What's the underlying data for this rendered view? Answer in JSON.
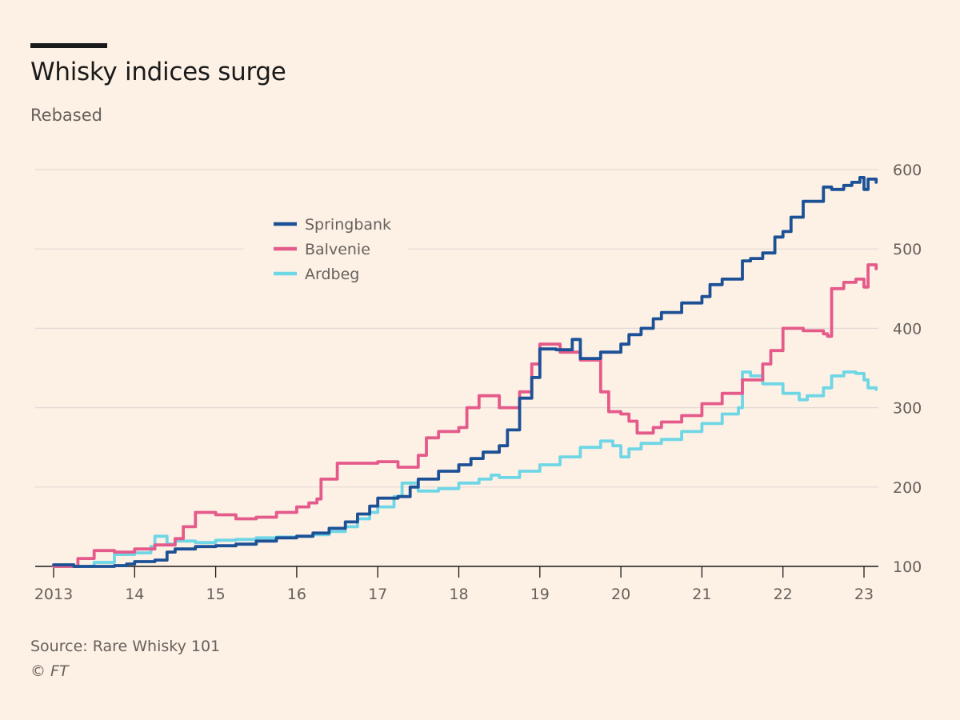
{
  "header": {
    "title": "Whisky indices surge",
    "subtitle": "Rebased"
  },
  "footer": {
    "source": "Source: Rare Whisky 101",
    "copyright_symbol": "©",
    "copyright_owner": "FT"
  },
  "colors": {
    "background": "#fdf1e5",
    "grid": "#e2d9d6",
    "springbank": "#1c5196",
    "balvenie": "#e45a8a",
    "ardbeg": "#6fd6e6"
  },
  "chart_data": {
    "type": "line",
    "title": "Whisky indices surge",
    "subtitle": "Rebased",
    "ylim": [
      100,
      600
    ],
    "xlim": [
      2013.0,
      2023.2
    ],
    "grid": true,
    "legend_position": "top-left",
    "y_ticks": [
      100,
      200,
      300,
      400,
      500,
      600
    ],
    "x_ticks": [
      {
        "value": 2013,
        "label": "2013"
      },
      {
        "value": 2014,
        "label": "14"
      },
      {
        "value": 2015,
        "label": "15"
      },
      {
        "value": 2016,
        "label": "16"
      },
      {
        "value": 2017,
        "label": "17"
      },
      {
        "value": 2018,
        "label": "18"
      },
      {
        "value": 2019,
        "label": "19"
      },
      {
        "value": 2020,
        "label": "20"
      },
      {
        "value": 2021,
        "label": "21"
      },
      {
        "value": 2022,
        "label": "22"
      },
      {
        "value": 2023,
        "label": "23"
      }
    ],
    "series": [
      {
        "name": "Springbank",
        "color": "#1c5196",
        "x": [
          2013.0,
          2013.25,
          2013.5,
          2013.75,
          2013.9,
          2014.0,
          2014.25,
          2014.4,
          2014.5,
          2014.75,
          2015.0,
          2015.25,
          2015.5,
          2015.75,
          2016.0,
          2016.2,
          2016.4,
          2016.6,
          2016.75,
          2016.9,
          2017.0,
          2017.25,
          2017.4,
          2017.5,
          2017.75,
          2018.0,
          2018.15,
          2018.3,
          2018.5,
          2018.6,
          2018.75,
          2018.9,
          2019.0,
          2019.2,
          2019.4,
          2019.5,
          2019.75,
          2020.0,
          2020.1,
          2020.25,
          2020.4,
          2020.5,
          2020.75,
          2021.0,
          2021.1,
          2021.25,
          2021.5,
          2021.6,
          2021.75,
          2021.9,
          2022.0,
          2022.1,
          2022.25,
          2022.5,
          2022.6,
          2022.75,
          2022.85,
          2022.95,
          2023.0,
          2023.05,
          2023.15
        ],
        "values": [
          102,
          100,
          100,
          101,
          103,
          106,
          108,
          118,
          122,
          125,
          126,
          128,
          132,
          136,
          138,
          142,
          148,
          156,
          166,
          176,
          186,
          188,
          200,
          210,
          220,
          228,
          236,
          244,
          252,
          272,
          312,
          338,
          374,
          373,
          386,
          362,
          370,
          380,
          392,
          400,
          412,
          420,
          432,
          440,
          455,
          462,
          485,
          488,
          495,
          515,
          522,
          540,
          560,
          578,
          575,
          580,
          584,
          590,
          575,
          588,
          584
        ]
      },
      {
        "name": "Balvenie",
        "color": "#e45a8a",
        "x": [
          2013.0,
          2013.15,
          2013.3,
          2013.5,
          2013.75,
          2014.0,
          2014.25,
          2014.5,
          2014.6,
          2014.75,
          2015.0,
          2015.25,
          2015.5,
          2015.75,
          2016.0,
          2016.15,
          2016.25,
          2016.3,
          2016.5,
          2016.75,
          2017.0,
          2017.25,
          2017.5,
          2017.6,
          2017.75,
          2018.0,
          2018.1,
          2018.25,
          2018.5,
          2018.75,
          2018.9,
          2019.0,
          2019.25,
          2019.5,
          2019.75,
          2019.85,
          2020.0,
          2020.1,
          2020.2,
          2020.4,
          2020.5,
          2020.75,
          2021.0,
          2021.25,
          2021.5,
          2021.75,
          2021.85,
          2022.0,
          2022.25,
          2022.5,
          2022.55,
          2022.6,
          2022.75,
          2022.9,
          2023.0,
          2023.05,
          2023.15
        ],
        "values": [
          100,
          100,
          110,
          120,
          118,
          122,
          127,
          135,
          150,
          168,
          165,
          160,
          162,
          168,
          175,
          180,
          185,
          210,
          230,
          230,
          232,
          225,
          240,
          262,
          270,
          275,
          300,
          315,
          300,
          320,
          355,
          380,
          370,
          360,
          320,
          295,
          292,
          283,
          268,
          275,
          282,
          290,
          305,
          318,
          335,
          355,
          372,
          400,
          397,
          393,
          390,
          450,
          458,
          462,
          452,
          480,
          475
        ]
      },
      {
        "name": "Ardbeg",
        "color": "#6fd6e6",
        "x": [
          2013.0,
          2013.25,
          2013.5,
          2013.75,
          2014.0,
          2014.2,
          2014.25,
          2014.4,
          2014.5,
          2014.75,
          2015.0,
          2015.25,
          2015.5,
          2015.75,
          2016.0,
          2016.2,
          2016.4,
          2016.6,
          2016.75,
          2016.9,
          2017.0,
          2017.2,
          2017.3,
          2017.5,
          2017.75,
          2018.0,
          2018.25,
          2018.4,
          2018.5,
          2018.75,
          2019.0,
          2019.25,
          2019.5,
          2019.75,
          2019.9,
          2020.0,
          2020.1,
          2020.25,
          2020.5,
          2020.75,
          2021.0,
          2021.25,
          2021.45,
          2021.5,
          2021.6,
          2021.75,
          2022.0,
          2022.2,
          2022.3,
          2022.5,
          2022.6,
          2022.75,
          2022.9,
          2023.0,
          2023.05,
          2023.15
        ],
        "values": [
          100,
          100,
          105,
          115,
          117,
          125,
          138,
          128,
          132,
          130,
          133,
          134,
          136,
          137,
          138,
          140,
          144,
          150,
          160,
          168,
          175,
          188,
          205,
          195,
          198,
          205,
          210,
          215,
          212,
          220,
          228,
          238,
          250,
          258,
          252,
          238,
          248,
          255,
          260,
          270,
          280,
          292,
          300,
          345,
          340,
          330,
          318,
          310,
          315,
          325,
          340,
          345,
          343,
          335,
          325,
          323
        ]
      }
    ]
  }
}
